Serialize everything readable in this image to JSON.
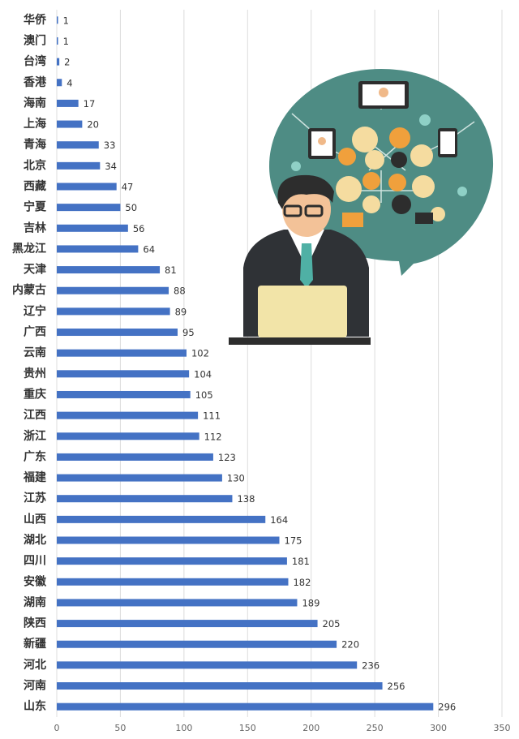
{
  "chart_data": {
    "type": "bar",
    "horizontal": true,
    "categories": [
      "华侨",
      "澳门",
      "台湾",
      "香港",
      "海南",
      "上海",
      "青海",
      "北京",
      "西藏",
      "宁夏",
      "吉林",
      "黑龙江",
      "天津",
      "内蒙古",
      "辽宁",
      "广西",
      "云南",
      "贵州",
      "重庆",
      "江西",
      "浙江",
      "广东",
      "福建",
      "江苏",
      "山西",
      "湖北",
      "四川",
      "安徽",
      "湖南",
      "陕西",
      "新疆",
      "河北",
      "河南",
      "山东"
    ],
    "values": [
      1,
      1,
      2,
      4,
      17,
      20,
      33,
      34,
      47,
      50,
      56,
      64,
      81,
      88,
      89,
      95,
      102,
      104,
      105,
      111,
      112,
      123,
      130,
      138,
      164,
      175,
      181,
      182,
      189,
      205,
      220,
      236,
      256,
      296
    ],
    "color": "#4472c4",
    "xlim": [
      0,
      350
    ],
    "xticks": [
      0,
      50,
      100,
      150,
      200,
      250,
      300,
      350
    ],
    "grid": true
  }
}
